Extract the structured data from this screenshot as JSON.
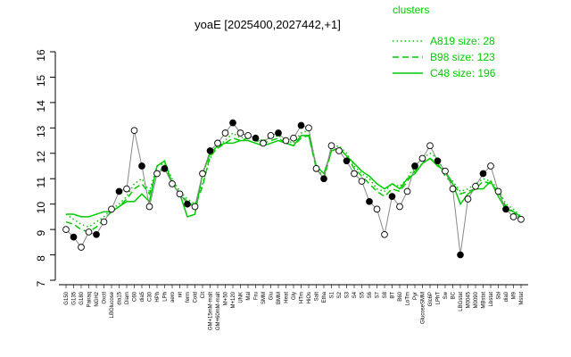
{
  "chart_data": {
    "type": "line",
    "title": "yoaE [2025400,2027442,+1]",
    "xlabel": "",
    "ylabel": "",
    "ylim": [
      7,
      16
    ],
    "yticks": [
      7,
      8,
      9,
      10,
      11,
      12,
      13,
      14,
      15,
      16
    ],
    "legend": {
      "title": "clusters",
      "placement": "top-right",
      "entries": [
        {
          "label": "A819 size: 28",
          "style": "dotted"
        },
        {
          "label": "B98 size: 123",
          "style": "dashed"
        },
        {
          "label": "C48 size: 196",
          "style": "solid"
        }
      ]
    },
    "x_tick_labels": [
      "G150",
      "G135",
      "G180",
      "Pairaq",
      "NGH2",
      "Oxctl",
      "LBGlucose",
      "dia15",
      "Diam",
      "C60",
      "dia5",
      "C30",
      "HPh",
      "LPh",
      "aero",
      "nit",
      "ferm",
      "Cold",
      "Cit",
      "GM+15mM-malt",
      "GM+60mM-malt",
      "M+50",
      "M+120",
      "UNK",
      "Mal",
      "Fru",
      "SMM",
      "Glu",
      "BMM",
      "Heat",
      "Gly",
      "HTm",
      "HiOs",
      "Salt",
      "Etha",
      "S1",
      "S2",
      "S3",
      "S4",
      "S5",
      "S6",
      "S7",
      "S8",
      "BT",
      "B60",
      "LoTm",
      "Pyr",
      "GlucoseSMM",
      "Glc6P",
      "LPhT",
      "Sw",
      "BC",
      "LBGstat",
      "M0045",
      "M0090",
      "MBstat",
      "Lbstat",
      "Sbl",
      "dia0",
      "M9",
      "Mstat"
    ],
    "series": [
      {
        "name": "A819 size: 28",
        "style": "dotted",
        "values": [
          9.6,
          9.4,
          9.2,
          9.1,
          9.3,
          9.5,
          9.8,
          10.0,
          10.3,
          10.8,
          11.0,
          10.5,
          11.5,
          11.6,
          11.0,
          10.5,
          10.2,
          10.0,
          10.8,
          11.8,
          12.3,
          12.5,
          12.8,
          12.6,
          12.7,
          12.6,
          12.5,
          12.6,
          12.7,
          12.5,
          12.4,
          12.8,
          12.9,
          11.5,
          11.0,
          12.2,
          12.3,
          12.0,
          11.5,
          11.2,
          11.0,
          10.6,
          10.5,
          10.8,
          10.7,
          11.0,
          11.5,
          11.8,
          12.0,
          11.8,
          11.2,
          10.9,
          10.5,
          10.6,
          10.8,
          11.0,
          10.9,
          10.6,
          10.0,
          9.8,
          9.5
        ]
      },
      {
        "name": "B98 size: 123",
        "style": "dashed",
        "values": [
          9.3,
          9.2,
          9.0,
          8.9,
          9.1,
          9.4,
          9.7,
          9.9,
          10.2,
          10.6,
          10.8,
          10.4,
          11.3,
          11.4,
          10.9,
          10.4,
          10.1,
          9.9,
          10.7,
          11.9,
          12.2,
          12.4,
          12.6,
          12.5,
          12.6,
          12.5,
          12.4,
          12.5,
          12.6,
          12.4,
          12.3,
          12.6,
          12.7,
          11.4,
          11.0,
          12.1,
          12.2,
          11.9,
          11.4,
          11.1,
          10.8,
          10.5,
          10.3,
          10.6,
          10.5,
          10.9,
          11.3,
          11.6,
          11.8,
          11.6,
          11.1,
          10.8,
          10.4,
          10.5,
          10.6,
          10.9,
          10.8,
          10.5,
          9.9,
          9.7,
          9.4
        ]
      },
      {
        "name": "C48 size: 196",
        "style": "solid",
        "values": [
          9.6,
          9.6,
          9.5,
          9.5,
          9.6,
          9.7,
          9.7,
          9.9,
          10.1,
          10.1,
          10.4,
          10.1,
          11.5,
          11.7,
          10.8,
          10.4,
          9.5,
          9.6,
          11.2,
          12.0,
          12.3,
          12.4,
          12.4,
          12.5,
          12.5,
          12.4,
          12.3,
          12.4,
          12.5,
          12.4,
          12.3,
          12.7,
          12.7,
          11.5,
          11.2,
          12.1,
          12.2,
          11.9,
          11.6,
          11.3,
          11.1,
          10.8,
          10.6,
          10.8,
          10.6,
          11.0,
          11.2,
          11.6,
          11.8,
          11.5,
          11.3,
          10.8,
          10.0,
          10.4,
          10.6,
          10.6,
          10.9,
          10.3,
          9.8,
          9.7,
          9.5
        ]
      },
      {
        "name": "yoaE",
        "style": "points",
        "values": [
          9.0,
          8.7,
          8.3,
          8.9,
          8.8,
          9.3,
          9.8,
          10.5,
          10.6,
          12.9,
          11.5,
          9.9,
          11.2,
          11.4,
          10.8,
          10.4,
          10.0,
          9.9,
          11.2,
          12.1,
          12.4,
          12.8,
          13.2,
          12.8,
          12.7,
          12.6,
          12.4,
          12.7,
          12.8,
          12.5,
          12.6,
          13.1,
          13.0,
          11.4,
          11.0,
          12.3,
          12.1,
          11.7,
          11.2,
          10.9,
          10.1,
          9.8,
          8.8,
          10.3,
          9.9,
          10.5,
          11.5,
          11.8,
          12.3,
          11.7,
          11.3,
          10.6,
          8.0,
          10.2,
          10.7,
          11.2,
          11.5,
          10.5,
          9.8,
          9.5,
          9.4
        ]
      }
    ]
  }
}
